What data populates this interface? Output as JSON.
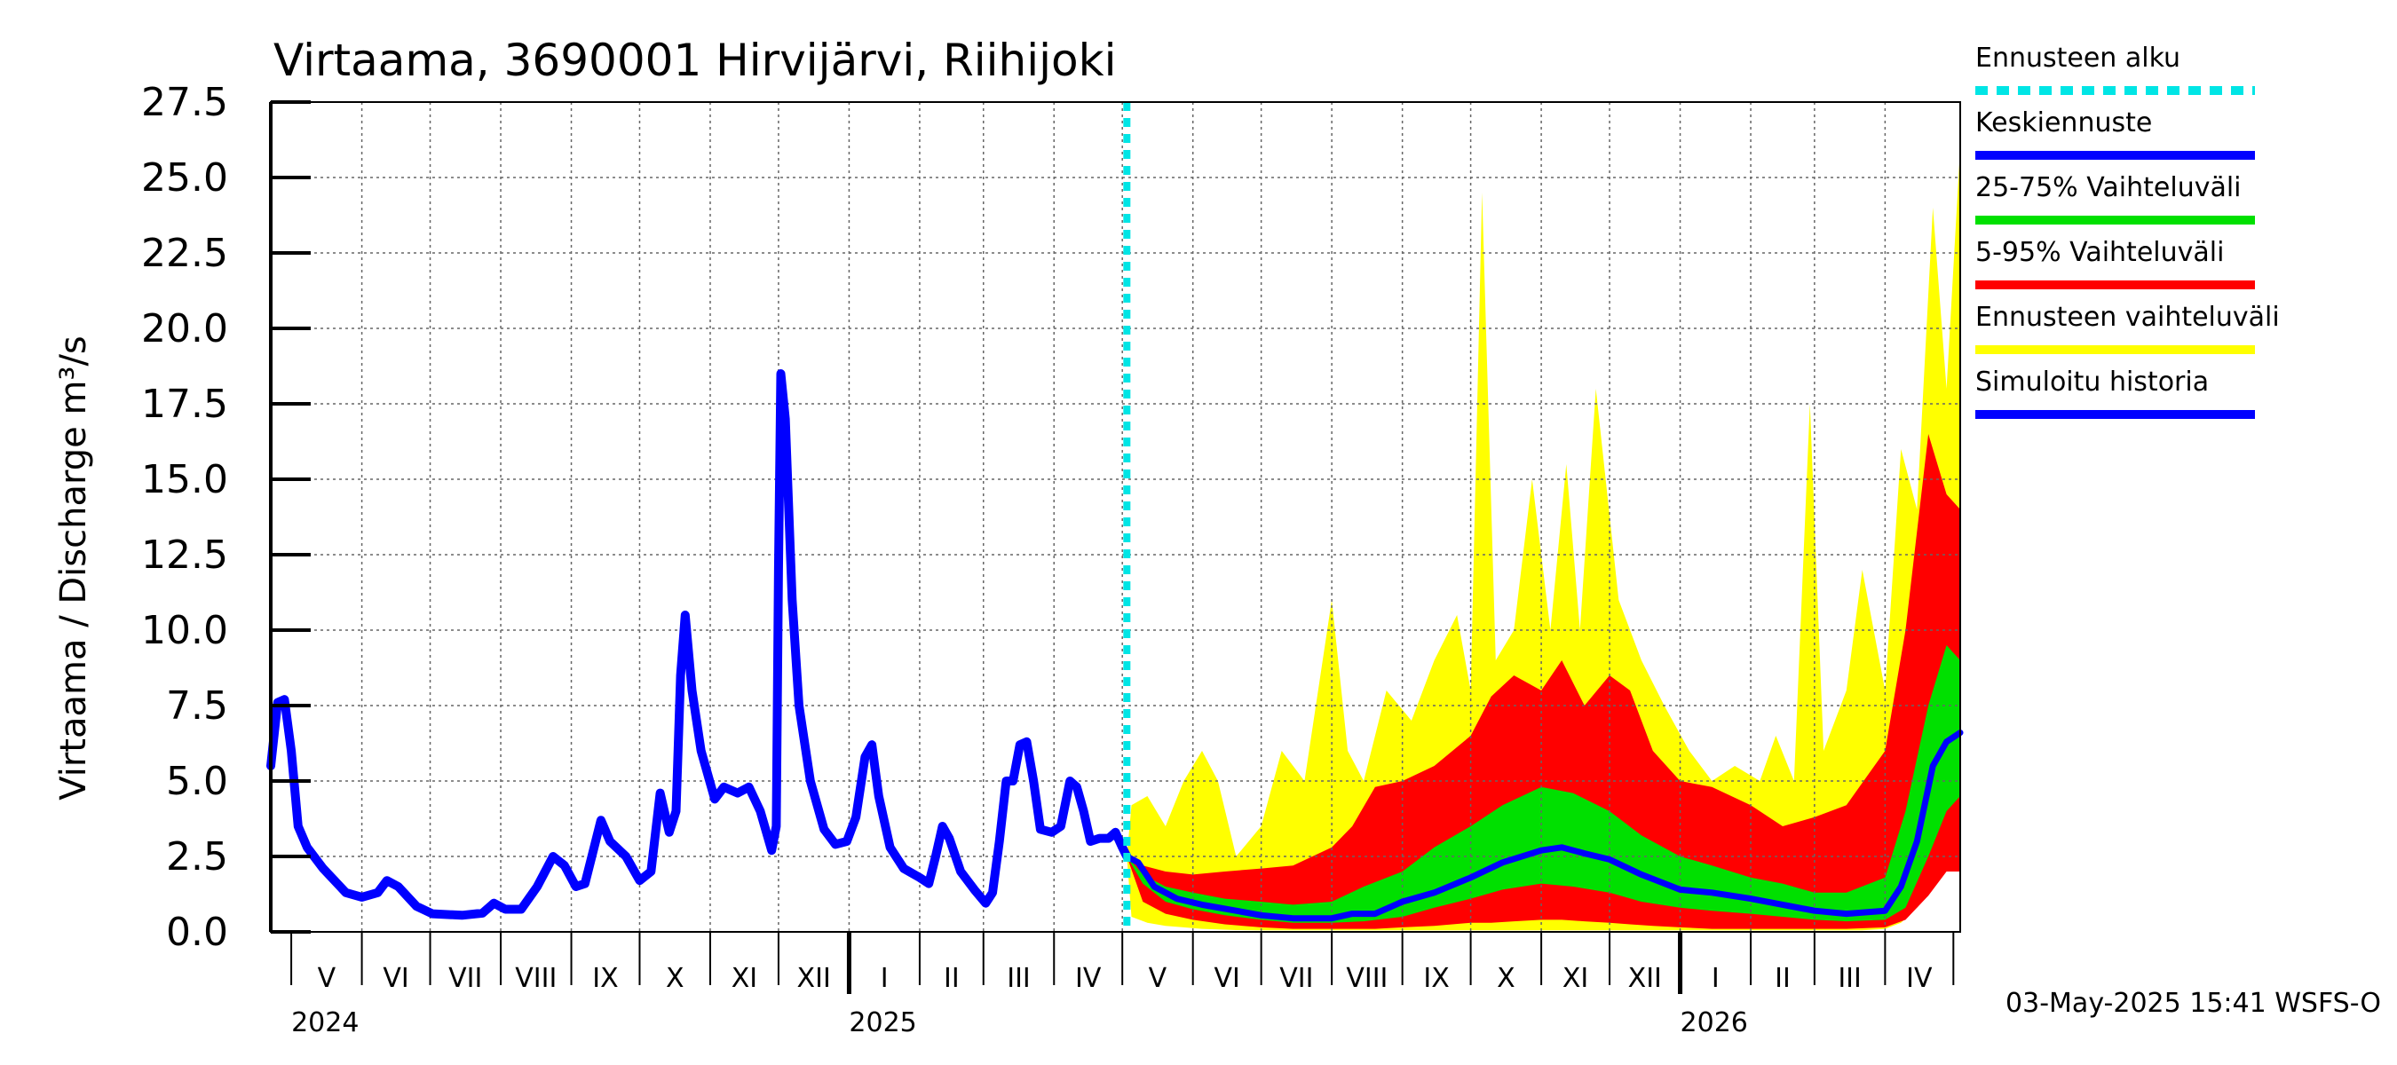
{
  "chart_data": {
    "type": "area",
    "title": "Virtaama, 3690001 Hirvijärvi, Riihijoki",
    "ylabel": "Virtaama / Discharge     m³/s",
    "ylim": [
      0,
      27.5
    ],
    "yticks": [
      0.0,
      2.5,
      5.0,
      7.5,
      10.0,
      12.5,
      15.0,
      17.5,
      20.0,
      22.5,
      25.0,
      27.5
    ],
    "ytick_labels": [
      "0.0",
      "2.5",
      "5.0",
      "7.5",
      "10.0",
      "12.5",
      "15.0",
      "17.5",
      "20.0",
      "22.5",
      "25.0",
      "27.5"
    ],
    "xlim": [
      "2024-04-22",
      "2026-05-04"
    ],
    "months": [
      {
        "label": "V",
        "start": "2024-05-01"
      },
      {
        "label": "VI",
        "start": "2024-06-01"
      },
      {
        "label": "VII",
        "start": "2024-07-01"
      },
      {
        "label": "VIII",
        "start": "2024-08-01"
      },
      {
        "label": "IX",
        "start": "2024-09-01"
      },
      {
        "label": "X",
        "start": "2024-10-01"
      },
      {
        "label": "XI",
        "start": "2024-11-01"
      },
      {
        "label": "XII",
        "start": "2024-12-01"
      },
      {
        "label": "I",
        "start": "2025-01-01"
      },
      {
        "label": "II",
        "start": "2025-02-01"
      },
      {
        "label": "III",
        "start": "2025-03-01"
      },
      {
        "label": "IV",
        "start": "2025-04-01"
      },
      {
        "label": "V",
        "start": "2025-05-01"
      },
      {
        "label": "VI",
        "start": "2025-06-01"
      },
      {
        "label": "VII",
        "start": "2025-07-01"
      },
      {
        "label": "VIII",
        "start": "2025-08-01"
      },
      {
        "label": "IX",
        "start": "2025-09-01"
      },
      {
        "label": "X",
        "start": "2025-10-01"
      },
      {
        "label": "XI",
        "start": "2025-11-01"
      },
      {
        "label": "XII",
        "start": "2025-12-01"
      },
      {
        "label": "I",
        "start": "2026-01-01"
      },
      {
        "label": "II",
        "start": "2026-02-01"
      },
      {
        "label": "III",
        "start": "2026-03-01"
      },
      {
        "label": "IV",
        "start": "2026-04-01"
      }
    ],
    "months_end": "2026-05-01",
    "years": [
      {
        "label": "2024",
        "date": "2024-05-01"
      },
      {
        "label": "2025",
        "date": "2025-01-01"
      },
      {
        "label": "2026",
        "date": "2026-01-01"
      }
    ],
    "forecast_start": "2025-05-03",
    "grid": true,
    "legend_position": "right",
    "colors": {
      "forecast_start": "#00e5e5",
      "mean": "#0000ff",
      "p25_75": "#00e000",
      "p5_95": "#ff0000",
      "range": "#ffff00",
      "history": "#0000ff"
    },
    "legend": [
      {
        "key": "forecast_start",
        "label": "Ennusteen alku",
        "style": "dashed"
      },
      {
        "key": "mean",
        "label": "Keskiennuste",
        "style": "line"
      },
      {
        "key": "p25_75",
        "label": "25-75% Vaihteluväli",
        "style": "line"
      },
      {
        "key": "p5_95",
        "label": "5-95% Vaihteluväli",
        "style": "line"
      },
      {
        "key": "range",
        "label": "Ennusteen vaihteluväli",
        "style": "line"
      },
      {
        "key": "history",
        "label": "Simuloitu historia",
        "style": "line"
      }
    ],
    "history": [
      [
        "2024-04-22",
        5.5
      ],
      [
        "2024-04-25",
        7.6
      ],
      [
        "2024-04-28",
        7.7
      ],
      [
        "2024-05-01",
        6.0
      ],
      [
        "2024-05-04",
        3.5
      ],
      [
        "2024-05-08",
        2.8
      ],
      [
        "2024-05-15",
        2.1
      ],
      [
        "2024-05-25",
        1.3
      ],
      [
        "2024-06-01",
        1.15
      ],
      [
        "2024-06-08",
        1.3
      ],
      [
        "2024-06-12",
        1.7
      ],
      [
        "2024-06-17",
        1.5
      ],
      [
        "2024-06-25",
        0.85
      ],
      [
        "2024-07-02",
        0.6
      ],
      [
        "2024-07-15",
        0.55
      ],
      [
        "2024-07-24",
        0.62
      ],
      [
        "2024-07-29",
        0.95
      ],
      [
        "2024-08-03",
        0.75
      ],
      [
        "2024-08-10",
        0.75
      ],
      [
        "2024-08-17",
        1.5
      ],
      [
        "2024-08-24",
        2.5
      ],
      [
        "2024-08-29",
        2.2
      ],
      [
        "2024-09-03",
        1.5
      ],
      [
        "2024-09-07",
        1.6
      ],
      [
        "2024-09-11",
        2.8
      ],
      [
        "2024-09-14",
        3.7
      ],
      [
        "2024-09-18",
        3.0
      ],
      [
        "2024-09-25",
        2.5
      ],
      [
        "2024-10-01",
        1.7
      ],
      [
        "2024-10-06",
        2.0
      ],
      [
        "2024-10-10",
        4.6
      ],
      [
        "2024-10-14",
        3.3
      ],
      [
        "2024-10-17",
        4.0
      ],
      [
        "2024-10-19",
        8.5
      ],
      [
        "2024-10-21",
        10.5
      ],
      [
        "2024-10-24",
        8.0
      ],
      [
        "2024-10-28",
        6.0
      ],
      [
        "2024-11-03",
        4.4
      ],
      [
        "2024-11-07",
        4.8
      ],
      [
        "2024-11-13",
        4.6
      ],
      [
        "2024-11-18",
        4.8
      ],
      [
        "2024-11-23",
        4.0
      ],
      [
        "2024-11-28",
        2.7
      ],
      [
        "2024-11-30",
        3.5
      ],
      [
        "2024-12-01",
        12.0
      ],
      [
        "2024-12-02",
        18.5
      ],
      [
        "2024-12-04",
        17.0
      ],
      [
        "2024-12-07",
        11.0
      ],
      [
        "2024-12-10",
        7.5
      ],
      [
        "2024-12-15",
        5.0
      ],
      [
        "2024-12-21",
        3.4
      ],
      [
        "2024-12-26",
        2.9
      ],
      [
        "2024-12-31",
        3.0
      ],
      [
        "2025-01-04",
        3.8
      ],
      [
        "2025-01-08",
        5.8
      ],
      [
        "2025-01-11",
        6.2
      ],
      [
        "2025-01-14",
        4.5
      ],
      [
        "2025-01-19",
        2.8
      ],
      [
        "2025-01-25",
        2.1
      ],
      [
        "2025-02-01",
        1.8
      ],
      [
        "2025-02-05",
        1.6
      ],
      [
        "2025-02-08",
        2.5
      ],
      [
        "2025-02-11",
        3.5
      ],
      [
        "2025-02-14",
        3.1
      ],
      [
        "2025-02-19",
        2.0
      ],
      [
        "2025-02-25",
        1.4
      ],
      [
        "2025-03-02",
        0.95
      ],
      [
        "2025-03-05",
        1.3
      ],
      [
        "2025-03-08",
        3.0
      ],
      [
        "2025-03-11",
        5.0
      ],
      [
        "2025-03-14",
        5.0
      ],
      [
        "2025-03-17",
        6.2
      ],
      [
        "2025-03-20",
        6.3
      ],
      [
        "2025-03-23",
        5.0
      ],
      [
        "2025-03-26",
        3.4
      ],
      [
        "2025-03-31",
        3.3
      ],
      [
        "2025-04-04",
        3.5
      ],
      [
        "2025-04-08",
        5.0
      ],
      [
        "2025-04-11",
        4.8
      ],
      [
        "2025-04-14",
        4.0
      ],
      [
        "2025-04-17",
        3.0
      ],
      [
        "2025-04-21",
        3.1
      ],
      [
        "2025-04-25",
        3.1
      ],
      [
        "2025-04-28",
        3.3
      ],
      [
        "2025-05-01",
        2.8
      ],
      [
        "2025-05-03",
        2.5
      ]
    ],
    "mean": [
      [
        "2025-05-03",
        2.5
      ],
      [
        "2025-05-08",
        2.3
      ],
      [
        "2025-05-15",
        1.5
      ],
      [
        "2025-05-25",
        1.1
      ],
      [
        "2025-06-05",
        0.9
      ],
      [
        "2025-06-20",
        0.7
      ],
      [
        "2025-07-01",
        0.55
      ],
      [
        "2025-07-15",
        0.45
      ],
      [
        "2025-08-01",
        0.45
      ],
      [
        "2025-08-10",
        0.6
      ],
      [
        "2025-08-20",
        0.6
      ],
      [
        "2025-09-01",
        1.0
      ],
      [
        "2025-09-15",
        1.3
      ],
      [
        "2025-10-01",
        1.8
      ],
      [
        "2025-10-15",
        2.3
      ],
      [
        "2025-11-01",
        2.7
      ],
      [
        "2025-11-10",
        2.8
      ],
      [
        "2025-11-20",
        2.6
      ],
      [
        "2025-12-01",
        2.4
      ],
      [
        "2025-12-15",
        1.9
      ],
      [
        "2026-01-01",
        1.4
      ],
      [
        "2026-01-15",
        1.3
      ],
      [
        "2026-02-01",
        1.1
      ],
      [
        "2026-02-15",
        0.9
      ],
      [
        "2026-03-01",
        0.7
      ],
      [
        "2026-03-15",
        0.6
      ],
      [
        "2026-04-01",
        0.7
      ],
      [
        "2026-04-08",
        1.5
      ],
      [
        "2026-04-15",
        3.0
      ],
      [
        "2026-04-22",
        5.5
      ],
      [
        "2026-04-28",
        6.3
      ],
      [
        "2026-05-04",
        6.6
      ]
    ],
    "p25_75": [
      [
        "2025-05-03",
        2.5,
        2.5
      ],
      [
        "2025-05-10",
        1.9,
        1.6
      ],
      [
        "2025-05-20",
        1.5,
        1.0
      ],
      [
        "2025-06-01",
        1.3,
        0.75
      ],
      [
        "2025-06-15",
        1.1,
        0.55
      ],
      [
        "2025-07-01",
        1.0,
        0.4
      ],
      [
        "2025-07-15",
        0.9,
        0.3
      ],
      [
        "2025-08-01",
        1.0,
        0.3
      ],
      [
        "2025-08-15",
        1.5,
        0.35
      ],
      [
        "2025-09-01",
        2.0,
        0.5
      ],
      [
        "2025-09-15",
        2.8,
        0.8
      ],
      [
        "2025-10-01",
        3.5,
        1.1
      ],
      [
        "2025-10-15",
        4.2,
        1.4
      ],
      [
        "2025-11-01",
        4.8,
        1.6
      ],
      [
        "2025-11-15",
        4.6,
        1.5
      ],
      [
        "2025-12-01",
        4.0,
        1.3
      ],
      [
        "2025-12-15",
        3.2,
        1.0
      ],
      [
        "2026-01-01",
        2.5,
        0.8
      ],
      [
        "2026-01-15",
        2.2,
        0.7
      ],
      [
        "2026-02-01",
        1.8,
        0.6
      ],
      [
        "2026-02-15",
        1.6,
        0.5
      ],
      [
        "2026-03-01",
        1.3,
        0.4
      ],
      [
        "2026-03-15",
        1.3,
        0.35
      ],
      [
        "2026-04-01",
        1.8,
        0.4
      ],
      [
        "2026-04-10",
        4.0,
        0.8
      ],
      [
        "2026-04-20",
        7.5,
        2.5
      ],
      [
        "2026-04-28",
        9.5,
        4.0
      ],
      [
        "2026-05-04",
        9.0,
        4.5
      ]
    ],
    "p5_95": [
      [
        "2025-05-03",
        2.5,
        2.5
      ],
      [
        "2025-05-10",
        2.2,
        1.0
      ],
      [
        "2025-05-20",
        2.0,
        0.6
      ],
      [
        "2025-06-01",
        1.9,
        0.4
      ],
      [
        "2025-06-15",
        2.0,
        0.25
      ],
      [
        "2025-07-01",
        2.1,
        0.15
      ],
      [
        "2025-07-15",
        2.2,
        0.1
      ],
      [
        "2025-08-01",
        2.8,
        0.1
      ],
      [
        "2025-08-10",
        3.5,
        0.1
      ],
      [
        "2025-08-20",
        4.8,
        0.1
      ],
      [
        "2025-09-01",
        5.0,
        0.15
      ],
      [
        "2025-09-15",
        5.5,
        0.2
      ],
      [
        "2025-10-01",
        6.5,
        0.3
      ],
      [
        "2025-10-10",
        7.8,
        0.3
      ],
      [
        "2025-10-20",
        8.5,
        0.35
      ],
      [
        "2025-11-01",
        8.0,
        0.4
      ],
      [
        "2025-11-10",
        9.0,
        0.4
      ],
      [
        "2025-11-20",
        7.5,
        0.35
      ],
      [
        "2025-12-01",
        8.5,
        0.3
      ],
      [
        "2025-12-10",
        8.0,
        0.25
      ],
      [
        "2025-12-20",
        6.0,
        0.2
      ],
      [
        "2026-01-01",
        5.0,
        0.15
      ],
      [
        "2026-01-15",
        4.8,
        0.1
      ],
      [
        "2026-02-01",
        4.2,
        0.1
      ],
      [
        "2026-02-15",
        3.5,
        0.1
      ],
      [
        "2026-03-01",
        3.8,
        0.1
      ],
      [
        "2026-03-15",
        4.2,
        0.1
      ],
      [
        "2026-04-01",
        6.0,
        0.15
      ],
      [
        "2026-04-10",
        10.0,
        0.4
      ],
      [
        "2026-04-20",
        16.5,
        1.2
      ],
      [
        "2026-04-28",
        14.5,
        2.0
      ],
      [
        "2026-05-04",
        14.0,
        2.0
      ]
    ],
    "range": [
      [
        "2025-05-03",
        2.5,
        2.5
      ],
      [
        "2025-05-05",
        4.2,
        0.5
      ],
      [
        "2025-05-12",
        4.5,
        0.3
      ],
      [
        "2025-05-20",
        3.5,
        0.2
      ],
      [
        "2025-05-28",
        5.0,
        0.15
      ],
      [
        "2025-06-05",
        6.0,
        0.1
      ],
      [
        "2025-06-12",
        5.0,
        0.08
      ],
      [
        "2025-06-20",
        2.5,
        0.06
      ],
      [
        "2025-07-01",
        3.5,
        0.05
      ],
      [
        "2025-07-10",
        6.0,
        0.05
      ],
      [
        "2025-07-20",
        5.0,
        0.05
      ],
      [
        "2025-08-01",
        11.0,
        0.05
      ],
      [
        "2025-08-08",
        6.0,
        0.05
      ],
      [
        "2025-08-15",
        5.0,
        0.05
      ],
      [
        "2025-08-25",
        8.0,
        0.05
      ],
      [
        "2025-09-05",
        7.0,
        0.05
      ],
      [
        "2025-09-15",
        9.0,
        0.05
      ],
      [
        "2025-09-25",
        10.5,
        0.05
      ],
      [
        "2025-10-01",
        8.0,
        0.05
      ],
      [
        "2025-10-06",
        24.5,
        0.05
      ],
      [
        "2025-10-12",
        9.0,
        0.05
      ],
      [
        "2025-10-20",
        10.0,
        0.05
      ],
      [
        "2025-10-28",
        15.0,
        0.05
      ],
      [
        "2025-11-05",
        10.0,
        0.05
      ],
      [
        "2025-11-12",
        15.5,
        0.05
      ],
      [
        "2025-11-18",
        10.0,
        0.05
      ],
      [
        "2025-11-25",
        18.0,
        0.05
      ],
      [
        "2025-12-05",
        11.0,
        0.05
      ],
      [
        "2025-12-15",
        9.0,
        0.05
      ],
      [
        "2025-12-25",
        7.5,
        0.05
      ],
      [
        "2026-01-05",
        6.0,
        0.05
      ],
      [
        "2026-01-15",
        5.0,
        0.05
      ],
      [
        "2026-01-25",
        5.5,
        0.05
      ],
      [
        "2026-02-05",
        5.0,
        0.05
      ],
      [
        "2026-02-12",
        6.5,
        0.05
      ],
      [
        "2026-02-20",
        5.0,
        0.05
      ],
      [
        "2026-02-27",
        17.5,
        0.05
      ],
      [
        "2026-03-05",
        6.0,
        0.05
      ],
      [
        "2026-03-15",
        8.0,
        0.05
      ],
      [
        "2026-03-22",
        12.0,
        0.05
      ],
      [
        "2026-04-01",
        8.0,
        0.1
      ],
      [
        "2026-04-08",
        16.0,
        0.3
      ],
      [
        "2026-04-15",
        14.0,
        0.8
      ],
      [
        "2026-04-22",
        24.0,
        1.5
      ],
      [
        "2026-04-28",
        18.0,
        2.5
      ],
      [
        "2026-05-04",
        26.0,
        2.5
      ]
    ]
  },
  "timestamp": "03-May-2025 15:41 WSFS-O"
}
